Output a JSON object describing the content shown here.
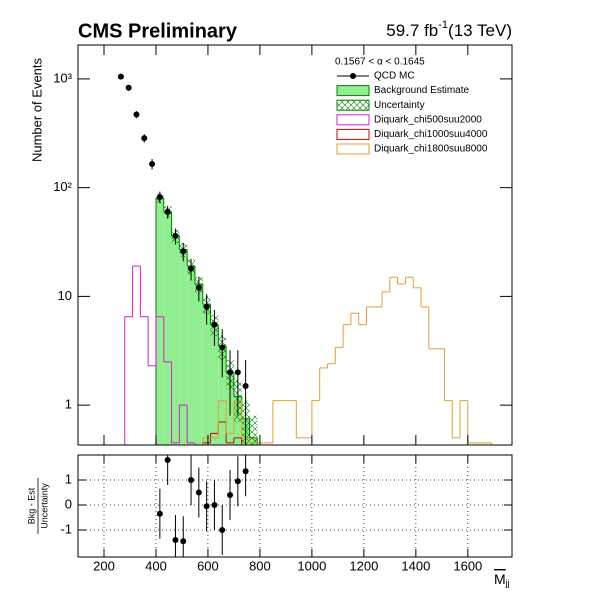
{
  "chart_data": [
    {
      "type": "hist",
      "title": "CMS Preliminary",
      "lumi": "59.7 fb",
      "lumi_exponent": "-1",
      "energy": "(13 TeV)",
      "ylabel": "Number of Events",
      "log_y": true,
      "legend_title": "0.1567 <  α < 0.1645",
      "legend_position": "top-right",
      "xlim": [
        100,
        1770
      ],
      "ylim": [
        0.43,
        2050
      ],
      "xticks": [
        200,
        400,
        600,
        800,
        1000,
        1200,
        1400,
        1600
      ],
      "yticks": [
        1,
        10,
        {
          "value": 100,
          "label": "10²"
        },
        {
          "value": 1000,
          "label": "10³"
        }
      ],
      "series": [
        {
          "name": "QCD MC",
          "style": "points",
          "color": "#000000",
          "x": [
            265,
            295,
            325,
            355,
            385,
            415,
            445,
            475,
            505,
            535,
            565,
            595,
            625,
            655,
            685,
            715,
            745
          ],
          "values": [
            1050,
            830,
            470,
            285,
            165,
            82,
            60,
            36,
            26,
            18,
            12,
            8,
            5.5,
            3.4,
            2.0,
            2.0,
            1.5
          ],
          "errors": [
            60,
            50,
            35,
            25,
            18,
            10,
            8,
            6,
            5,
            4,
            3,
            2.5,
            2,
            1.6,
            1.2,
            1.2,
            1.1
          ]
        },
        {
          "name": "Background Estimate",
          "style": "fill",
          "color": "#90ee90",
          "edge_color": "#008000",
          "error_name": "Uncertainty",
          "error_color": "#008000",
          "bins": [
            400,
            430,
            460,
            490,
            520,
            550,
            580,
            610,
            640,
            670,
            700,
            730,
            760,
            790
          ],
          "values": [
            80,
            60,
            36,
            27,
            19,
            13,
            8.5,
            5.5,
            3.5,
            2.0,
            1.2,
            0.75,
            0.5
          ],
          "errors": [
            8,
            7,
            5,
            4,
            3,
            2.2,
            1.6,
            1.2,
            0.9,
            0.6,
            0.5,
            0.35,
            0.3
          ]
        },
        {
          "name": "Diquark_chi500suu2000",
          "style": "step",
          "color": "#d020d0",
          "bins": [
            280,
            310,
            340,
            370,
            400,
            430,
            460,
            490,
            520,
            550
          ],
          "values": [
            6.5,
            19,
            6.5,
            2.3,
            6.5,
            2.5,
            0.45,
            1.0,
            0.45
          ]
        },
        {
          "name": "Diquark_chi1000suu4000",
          "style": "step",
          "color": "#cc0000",
          "bins": [
            580,
            610,
            640,
            670,
            700,
            730
          ],
          "values": [
            0.45,
            0.55,
            0.7,
            0.45,
            0.5
          ]
        },
        {
          "name": "Diquark_chi1800suu8000",
          "style": "step",
          "color": "#e0a030",
          "bins": [
            580,
            610,
            640,
            670,
            700,
            730,
            760,
            790,
            820,
            850,
            880,
            910,
            940,
            970,
            1000,
            1030,
            1060,
            1090,
            1120,
            1150,
            1180,
            1210,
            1240,
            1270,
            1300,
            1330,
            1360,
            1390,
            1420,
            1450,
            1480,
            1510,
            1540,
            1570,
            1600,
            1630,
            1660,
            1690
          ],
          "values": [
            0.5,
            0.5,
            1.1,
            0.55,
            1.1,
            0.5,
            0.45,
            0.45,
            0.45,
            1.1,
            1.1,
            1.1,
            0.5,
            0.5,
            1.1,
            2.2,
            2.4,
            3.4,
            5.5,
            7,
            5.5,
            8,
            8,
            11,
            15,
            13,
            15,
            12,
            8,
            3.3,
            3.3,
            1.1,
            0.5,
            1.1,
            0.45,
            0.45,
            0.45
          ]
        }
      ]
    },
    {
      "type": "scatter",
      "ylabel_numerator": "Bkg - Est",
      "ylabel_denominator": "Uncertainty",
      "xlabel": "M",
      "xlabel_sub": "jj",
      "xlim": [
        100,
        1770
      ],
      "ylim": [
        -2.08,
        2
      ],
      "grid": true,
      "xticks": [
        200,
        400,
        600,
        800,
        1000,
        1200,
        1400,
        1600
      ],
      "yticks": [
        -1,
        0,
        1
      ],
      "color": "#000000",
      "x": [
        415,
        445,
        475,
        505,
        535,
        565,
        595,
        625,
        655,
        685,
        715,
        745
      ],
      "values": [
        -0.35,
        1.8,
        -1.4,
        -1.45,
        1.0,
        0.5,
        -0.05,
        0.0,
        -1.0,
        0.4,
        0.95,
        1.35
      ],
      "errors": [
        1,
        1,
        1,
        1,
        1,
        1,
        1,
        1,
        1,
        1,
        1,
        1
      ]
    }
  ]
}
